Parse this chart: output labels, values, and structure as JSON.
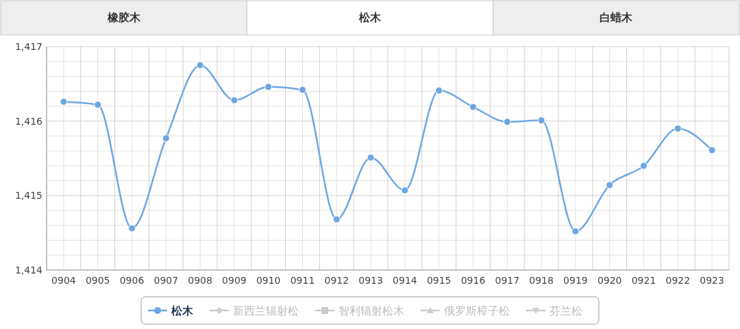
{
  "chart_data": {
    "type": "line",
    "annotations": [
      "橡胶木",
      "松木",
      "白蜡木"
    ],
    "categories": [
      "0904",
      "0905",
      "0906",
      "0907",
      "0908",
      "0909",
      "0910",
      "0911",
      "0912",
      "0913",
      "0914",
      "0915",
      "0916",
      "0917",
      "0918",
      "0919",
      "0920",
      "0921",
      "0922",
      "0923"
    ],
    "series": [
      {
        "name": "松木",
        "color": "#6ea6e2",
        "marker": "circle",
        "values": [
          1416.26,
          1416.22,
          1414.56,
          1415.77,
          1416.75,
          1416.28,
          1416.46,
          1416.42,
          1414.68,
          1415.51,
          1415.07,
          1416.41,
          1416.19,
          1415.99,
          1416.01,
          1414.52,
          1415.14,
          1415.4,
          1415.9,
          1415.61
        ]
      },
      {
        "name": "新西兰辐射松",
        "color": "#cccccc",
        "marker": "diamond",
        "values": [
          null,
          null,
          null,
          null,
          null,
          null,
          null,
          null,
          null,
          null,
          null,
          null,
          null,
          null,
          null,
          null,
          null,
          null,
          null,
          null
        ]
      },
      {
        "name": "智利辐射松木",
        "color": "#cccccc",
        "marker": "square",
        "values": [
          null,
          null,
          null,
          null,
          null,
          null,
          null,
          null,
          null,
          null,
          null,
          null,
          null,
          null,
          null,
          null,
          null,
          null,
          null,
          null
        ]
      },
      {
        "name": "俄罗斯樟子松",
        "color": "#cccccc",
        "marker": "triangle",
        "values": [
          null,
          null,
          null,
          null,
          null,
          null,
          null,
          null,
          null,
          null,
          null,
          null,
          null,
          null,
          null,
          null,
          null,
          null,
          null,
          null
        ]
      },
      {
        "name": "芬兰松",
        "color": "#cccccc",
        "marker": "triangle-down",
        "values": [
          null,
          null,
          null,
          null,
          null,
          null,
          null,
          null,
          null,
          null,
          null,
          null,
          null,
          null,
          null,
          null,
          null,
          null,
          null,
          null
        ]
      }
    ],
    "ylim": [
      1414,
      1417
    ],
    "yticks": [
      {
        "value": 1414,
        "label": "1,414"
      },
      {
        "value": 1414.2,
        "label": null
      },
      {
        "value": 1414.4,
        "label": null
      },
      {
        "value": 1414.6,
        "label": null
      },
      {
        "value": 1414.8,
        "label": null
      },
      {
        "value": 1415,
        "label": "1,415"
      },
      {
        "value": 1415.2,
        "label": null
      },
      {
        "value": 1415.4,
        "label": null
      },
      {
        "value": 1415.6,
        "label": null
      },
      {
        "value": 1415.8,
        "label": null
      },
      {
        "value": 1416,
        "label": "1,416"
      },
      {
        "value": 1416.2,
        "label": null
      },
      {
        "value": 1416.4,
        "label": null
      },
      {
        "value": 1416.6,
        "label": null
      },
      {
        "value": 1416.8,
        "label": null
      },
      {
        "value": 1417,
        "label": "1,417"
      }
    ],
    "grid": true,
    "legend": "bottom"
  }
}
